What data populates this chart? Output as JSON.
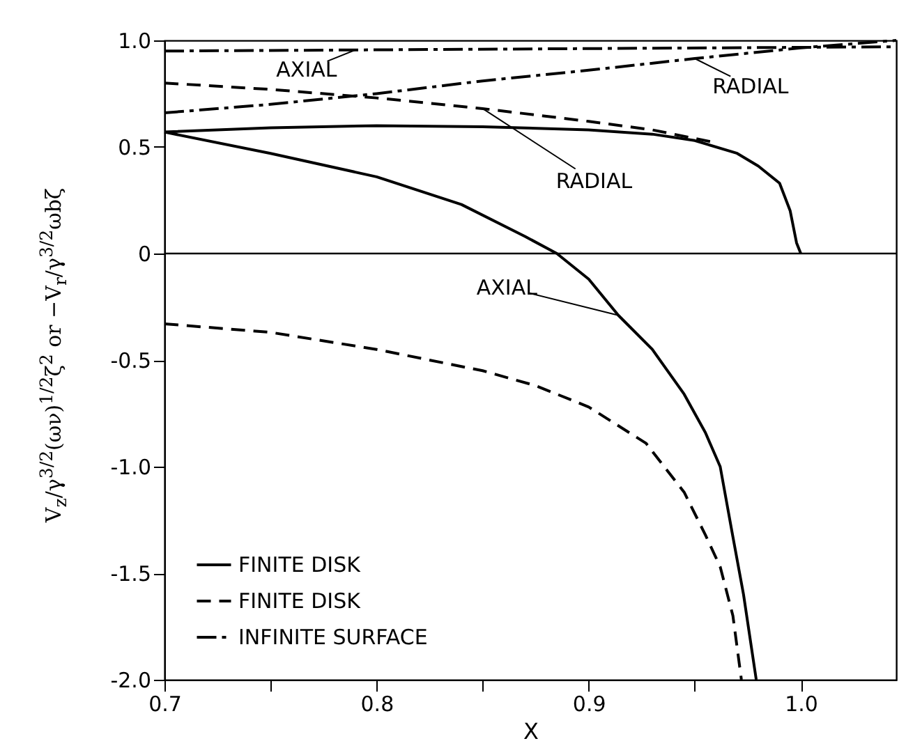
{
  "chart_data": {
    "type": "line",
    "xlabel": "X",
    "ylabel": "V$_{z}$/γ$^{3/2}$(ων)$^{1/2}$ζ$^{2}$  or  −V$_{r}$/γ$^{3/2}$ωbζ",
    "xlim": [
      0.7,
      1.045
    ],
    "ylim": [
      -2.0,
      1.0
    ],
    "xticks": [
      {
        "value": 0.7,
        "label": "0.7"
      },
      {
        "value": 0.75,
        "label": null
      },
      {
        "value": 0.8,
        "label": "0.8"
      },
      {
        "value": 0.85,
        "label": null
      },
      {
        "value": 0.9,
        "label": "0.9"
      },
      {
        "value": 0.95,
        "label": null
      },
      {
        "value": 1.0,
        "label": "1.0"
      }
    ],
    "yticks": [
      {
        "value": -2.0,
        "label": "-2.0"
      },
      {
        "value": -1.5,
        "label": "-1.5"
      },
      {
        "value": -1.0,
        "label": "-1.0"
      },
      {
        "value": -0.5,
        "label": "-0.5"
      },
      0,
      {
        "value": 0.5,
        "label": "0.5"
      },
      {
        "value": 1.0,
        "label": "1.0"
      }
    ],
    "grid": false,
    "legend": "bottom left",
    "marker": "none",
    "ref_lines": [
      {
        "axis": "y",
        "value": 0,
        "color": "#000000"
      }
    ],
    "series": [
      {
        "name": "FINITE DISK",
        "color": "#000000",
        "line_style": "solid",
        "x": [
          0.7,
          0.75,
          0.8,
          0.85,
          0.9,
          0.93,
          0.95,
          0.97,
          0.98,
          0.99,
          0.995,
          0.998,
          1.0
        ],
        "values": [
          0.57,
          0.59,
          0.6,
          0.595,
          0.58,
          0.56,
          0.53,
          0.47,
          0.41,
          0.33,
          0.2,
          0.05,
          0
        ]
      },
      {
        "name": "FINITE DISK",
        "color": "#000000",
        "line_style": "dashed",
        "x": [
          0.7,
          0.75,
          0.8,
          0.85,
          0.9,
          0.93,
          0.96
        ],
        "values": [
          0.8,
          0.77,
          0.73,
          0.68,
          0.62,
          0.58,
          0.52
        ]
      },
      {
        "color": "#000000",
        "line_style": "solid",
        "x": [
          0.7,
          0.75,
          0.8,
          0.84,
          0.87,
          0.885,
          0.9,
          0.914,
          0.93,
          0.945,
          0.955,
          0.962,
          0.968,
          0.973,
          0.979
        ],
        "values": [
          0.57,
          0.47,
          0.36,
          0.23,
          0.08,
          0,
          -0.12,
          -0.29,
          -0.45,
          -0.66,
          -0.84,
          -1.0,
          -1.33,
          -1.6,
          -2.0
        ]
      },
      {
        "color": "#000000",
        "line_style": "dashed",
        "x": [
          0.7,
          0.75,
          0.8,
          0.85,
          0.875,
          0.9,
          0.927,
          0.945,
          0.955,
          0.962,
          0.968,
          0.972
        ],
        "values": [
          -0.33,
          -0.37,
          -0.45,
          -0.55,
          -0.62,
          -0.72,
          -0.89,
          -1.12,
          -1.32,
          -1.47,
          -1.7,
          -2.0
        ]
      },
      {
        "name": "INFINITE SURFACE",
        "color": "#000000",
        "line_style": "dashdot",
        "x": [
          0.7,
          0.75,
          0.8,
          0.85,
          0.9,
          0.95,
          1.0,
          1.045
        ],
        "values": [
          0.66,
          0.7,
          0.75,
          0.81,
          0.86,
          0.915,
          0.965,
          1.0
        ]
      },
      {
        "color": "#000000",
        "line_style": "dashdot",
        "x": [
          0.7,
          1.045
        ],
        "values": [
          0.95,
          0.97
        ]
      }
    ],
    "annotations": [
      {
        "text": "AXIAL",
        "x": 0.79,
        "y": 0.955
      },
      {
        "text": "RADIAL",
        "x": 0.95,
        "y": 0.915
      },
      {
        "text": "RADIAL",
        "x": 0.85,
        "y": 0.68
      },
      {
        "text": "AXIAL",
        "x": 0.914,
        "y": -0.29
      }
    ]
  }
}
